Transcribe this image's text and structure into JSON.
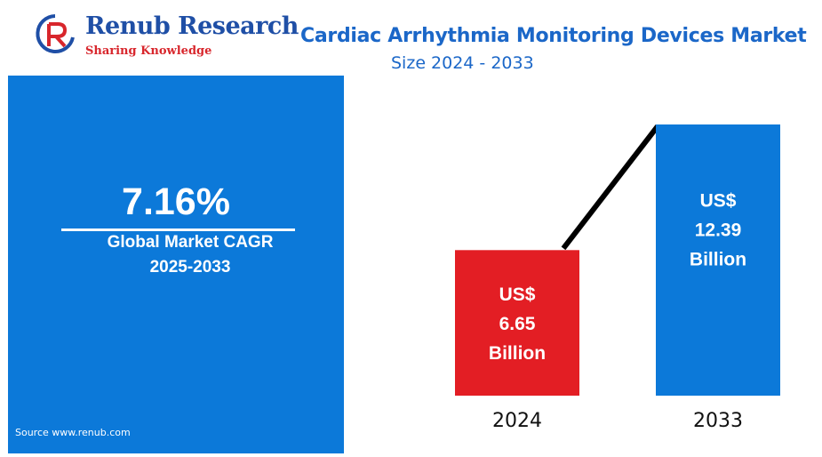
{
  "logo": {
    "name": "Renub Research",
    "tagline": "Sharing Knowledge",
    "colors": {
      "primary": "#1f4fa6",
      "accent": "#d8262c"
    }
  },
  "header": {
    "title": "Cardiac Arrhythmia Monitoring Devices Market",
    "subtitle": "Size 2024 - 2033"
  },
  "cagr": {
    "value": "7.16%",
    "label": "Global Market CAGR",
    "period": "2025-2033",
    "color": "#0c79d9"
  },
  "source": "Source  www.renub.com",
  "chart_data": {
    "type": "bar",
    "categories": [
      "2024",
      "2033"
    ],
    "values": [
      6.65,
      12.39
    ],
    "unit": "US$ Billion",
    "data_labels": [
      [
        "US$",
        "6.65",
        "Billion"
      ],
      [
        "US$",
        "12.39",
        "Billion"
      ]
    ],
    "colors": [
      "#e31e24",
      "#0c79d9"
    ],
    "trend_line": true,
    "title": "",
    "xlabel": "",
    "ylabel": "",
    "grid": false,
    "ylim": [
      0,
      13
    ]
  }
}
